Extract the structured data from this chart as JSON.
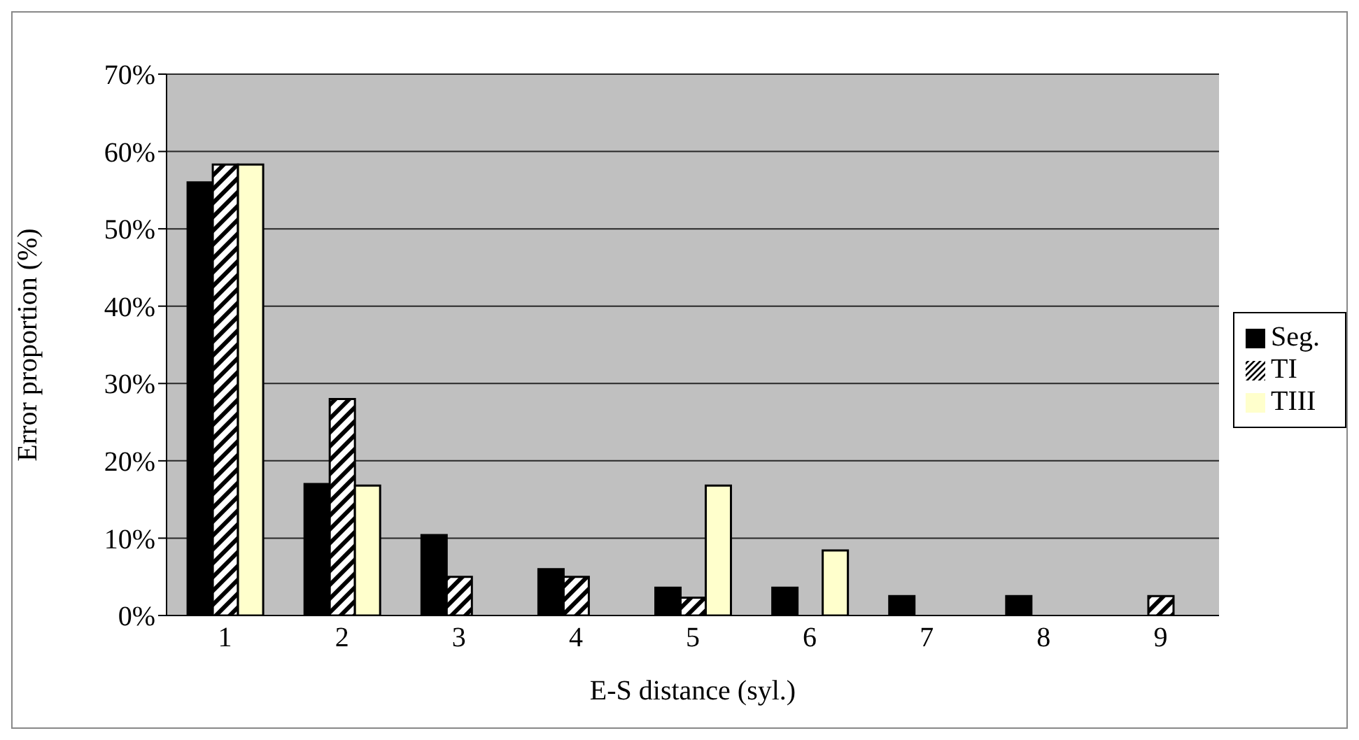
{
  "chart_data": {
    "type": "bar",
    "xlabel": "E-S distance (syl.)",
    "ylabel": "Error proportion (%)",
    "categories": [
      "1",
      "2",
      "3",
      "4",
      "5",
      "6",
      "7",
      "8",
      "9"
    ],
    "series": [
      {
        "name": "Seg.",
        "color": "#000000",
        "values": [
          56,
          17,
          10.4,
          6,
          3.6,
          3.6,
          2.5,
          2.5,
          0
        ]
      },
      {
        "name": "TI",
        "color": "#000000",
        "values": [
          58.3,
          28,
          5,
          5,
          2.3,
          0,
          0,
          0,
          2.5
        ]
      },
      {
        "name": "TIII",
        "color": "#ffffcc",
        "values": [
          58.3,
          16.8,
          0,
          0,
          16.8,
          8.4,
          0,
          0,
          0
        ]
      }
    ],
    "ylim": [
      0,
      70
    ],
    "yticks": [
      {
        "value": 0,
        "label": "0%"
      },
      {
        "value": 10,
        "label": "10%"
      },
      {
        "value": 20,
        "label": "20%"
      },
      {
        "value": 30,
        "label": "30%"
      },
      {
        "value": 40,
        "label": "40%"
      },
      {
        "value": 50,
        "label": "50%"
      },
      {
        "value": 60,
        "label": "60%"
      },
      {
        "value": 70,
        "label": "70%"
      }
    ],
    "grid": "y",
    "legend": "right"
  }
}
